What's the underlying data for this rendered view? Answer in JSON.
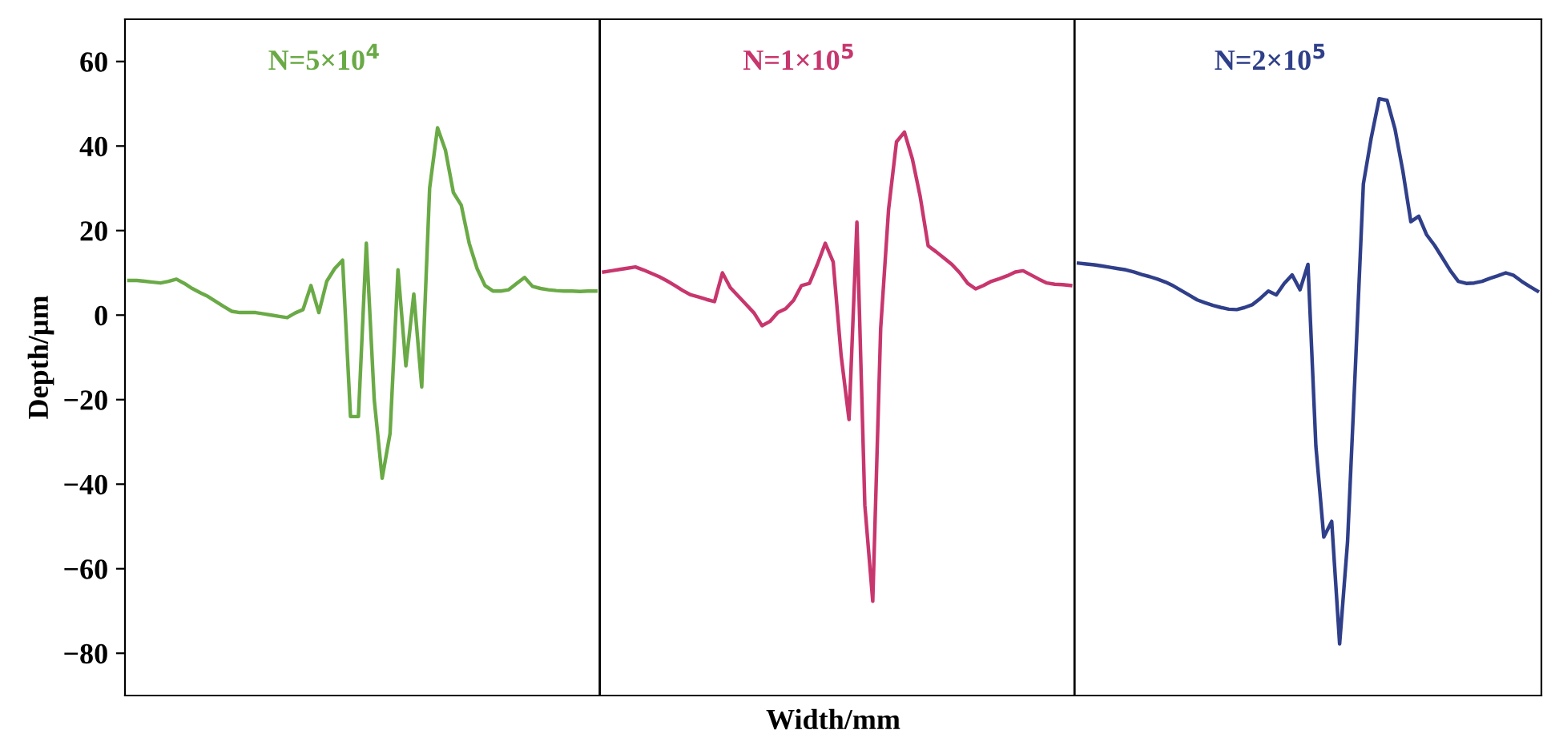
{
  "chart_data": {
    "type": "line",
    "ylabel": "Depth/μm",
    "xlabel": "Width/mm",
    "ylim": [
      -90,
      70
    ],
    "yticks": [
      60,
      40,
      20,
      0,
      {
        "value": -20,
        "label": "−20"
      },
      {
        "value": -40,
        "label": "−40"
      },
      {
        "value": -60,
        "label": "−60"
      },
      {
        "value": -80,
        "label": "−80"
      }
    ],
    "tick_labels": "y",
    "grid": false,
    "legend": false,
    "categories": [
      null,
      null,
      null,
      null,
      null,
      null,
      null,
      null,
      null,
      null,
      null,
      null,
      null,
      null,
      null,
      null,
      null,
      null,
      null,
      null,
      null,
      null,
      null,
      null,
      null,
      null,
      null,
      null,
      null,
      null,
      null,
      null,
      null,
      null,
      null,
      null,
      null,
      null,
      null,
      null,
      null,
      null,
      null,
      null,
      null,
      null,
      null,
      null,
      null,
      null,
      null,
      null,
      null,
      null,
      null,
      null,
      null,
      null,
      null,
      null,
      null,
      null,
      null,
      null,
      null,
      null,
      null,
      null,
      null,
      null,
      null,
      null,
      null,
      null,
      null,
      null,
      null,
      null,
      null,
      null,
      null,
      null,
      null,
      null,
      null,
      null,
      null,
      null,
      null,
      null,
      null,
      null,
      null,
      null,
      null,
      null,
      null,
      null,
      null,
      null,
      null,
      null,
      null,
      null,
      null,
      null,
      null,
      null,
      null,
      null,
      null,
      null,
      null,
      null,
      null,
      null,
      null,
      null,
      null,
      null,
      null,
      null,
      null,
      null,
      null,
      null,
      null,
      null,
      null,
      null,
      null,
      null,
      null,
      null,
      null,
      null,
      null,
      null,
      null,
      null,
      null,
      null,
      null,
      null,
      null,
      null,
      null,
      null,
      null,
      null,
      null,
      null,
      null,
      null,
      null,
      null,
      null,
      null,
      null,
      null,
      null,
      null,
      null,
      null,
      null,
      null,
      null,
      null,
      null,
      null,
      null,
      null,
      null,
      null,
      null,
      null,
      null,
      null,
      null
    ],
    "series": [
      {
        "name": "N=5×10$^{4}$",
        "color": "#6aaa46",
        "values": [
          8.2,
          8.2,
          8.0,
          7.8,
          7.6,
          8.0,
          8.5,
          7.5,
          6.3,
          5.3,
          4.4,
          3.2,
          2,
          0.9,
          0.6,
          0.6,
          0.6,
          0.3,
          0,
          -0.3,
          -0.6,
          0.5,
          1.3,
          7,
          0.6,
          8,
          11,
          13,
          -24,
          -24,
          17,
          -20,
          -38.6,
          -28,
          10.7,
          -12,
          5,
          -17,
          30,
          44.3,
          39,
          29,
          26,
          17,
          11,
          7,
          5.7,
          5.7,
          6,
          7.5,
          8.9,
          6.8,
          6.3,
          6,
          5.8,
          5.7,
          5.7,
          5.6,
          5.7,
          5.7,
          null,
          null,
          null,
          null,
          null,
          null,
          null,
          null,
          null,
          null,
          null,
          null,
          null,
          null,
          null,
          null,
          null,
          null,
          null,
          null,
          null,
          null,
          null,
          null,
          null,
          null,
          null,
          null,
          null,
          null,
          null,
          null,
          null,
          null,
          null,
          null,
          null,
          null,
          null,
          null,
          null,
          null,
          null,
          null,
          null,
          null,
          null,
          null,
          null,
          null,
          null,
          null,
          null,
          null,
          null,
          null,
          null,
          null,
          null,
          null,
          null,
          null,
          null,
          null,
          null,
          null,
          null,
          null,
          null,
          null,
          null,
          null,
          null,
          null,
          null,
          null,
          null,
          null,
          null,
          null,
          null,
          null,
          null,
          null,
          null,
          null,
          null,
          null,
          null,
          null,
          null,
          null,
          null,
          null,
          null,
          null,
          null,
          null,
          null,
          null,
          null,
          null,
          null,
          null,
          null,
          null,
          null,
          null,
          null,
          null,
          null,
          null,
          null,
          null,
          null,
          null,
          null,
          null,
          null
        ]
      },
      {
        "name": "N=1×10$^{5}$",
        "color": "#c8366e",
        "values": [
          null,
          null,
          null,
          null,
          null,
          null,
          null,
          null,
          null,
          null,
          null,
          null,
          null,
          null,
          null,
          null,
          null,
          null,
          null,
          null,
          null,
          null,
          null,
          null,
          null,
          null,
          null,
          null,
          null,
          null,
          null,
          null,
          null,
          null,
          null,
          null,
          null,
          null,
          null,
          null,
          null,
          null,
          null,
          null,
          null,
          null,
          null,
          null,
          null,
          null,
          null,
          null,
          null,
          null,
          null,
          null,
          null,
          null,
          null,
          null,
          10.2,
          10.5,
          10.8,
          11.1,
          11.4,
          10.7,
          9.9,
          9.1,
          8.1,
          7,
          5.8,
          4.8,
          4.3,
          3.7,
          3.2,
          10,
          6.5,
          4.5,
          2.5,
          0.5,
          -2.5,
          -1.5,
          0.6,
          1.5,
          3.5,
          7,
          7.5,
          12,
          17,
          12.6,
          -9.5,
          -24.7,
          22,
          -45,
          -67.7,
          -3.2,
          25,
          41,
          43.3,
          37,
          28,
          16.4,
          15,
          13.5,
          12,
          10,
          7.5,
          6.2,
          7,
          8,
          8.6,
          9.3,
          10.2,
          10.5,
          9.5,
          8.5,
          7.6,
          7.3,
          7.2,
          7,
          null,
          null,
          null,
          null,
          null,
          null,
          null,
          null,
          null,
          null,
          null,
          null,
          null,
          null,
          null,
          null,
          null,
          null,
          null,
          null,
          null,
          null,
          null,
          null,
          null,
          null,
          null,
          null,
          null,
          null,
          null,
          null,
          null,
          null,
          null,
          null,
          null,
          null,
          null,
          null,
          null,
          null,
          null,
          null,
          null,
          null,
          null,
          null,
          null,
          null,
          null,
          null,
          null,
          null,
          null,
          null,
          null,
          null,
          null
        ]
      },
      {
        "name": "N=2×10$^{5}$",
        "color": "#2f3f8a",
        "values": [
          null,
          null,
          null,
          null,
          null,
          null,
          null,
          null,
          null,
          null,
          null,
          null,
          null,
          null,
          null,
          null,
          null,
          null,
          null,
          null,
          null,
          null,
          null,
          null,
          null,
          null,
          null,
          null,
          null,
          null,
          null,
          null,
          null,
          null,
          null,
          null,
          null,
          null,
          null,
          null,
          null,
          null,
          null,
          null,
          null,
          null,
          null,
          null,
          null,
          null,
          null,
          null,
          null,
          null,
          null,
          null,
          null,
          null,
          null,
          null,
          null,
          null,
          null,
          null,
          null,
          null,
          null,
          null,
          null,
          null,
          null,
          null,
          null,
          null,
          null,
          null,
          null,
          null,
          null,
          null,
          null,
          null,
          null,
          null,
          null,
          null,
          null,
          null,
          null,
          null,
          null,
          null,
          null,
          null,
          null,
          null,
          null,
          null,
          null,
          null,
          null,
          null,
          null,
          null,
          null,
          null,
          null,
          null,
          null,
          null,
          null,
          null,
          null,
          null,
          null,
          null,
          null,
          null,
          null,
          null,
          12.3,
          12.1,
          11.9,
          11.6,
          11.3,
          11,
          10.7,
          10.2,
          9.6,
          9.1,
          8.5,
          7.8,
          6.9,
          5.8,
          4.7,
          3.6,
          2.9,
          2.3,
          1.8,
          1.4,
          1.3,
          1.8,
          2.5,
          4,
          5.7,
          4.8,
          7.5,
          9.5,
          6,
          12,
          -31,
          -52.5,
          -48.8,
          -77.8,
          -53.7,
          -12,
          31,
          42,
          51.2,
          50.8,
          44,
          34,
          22.1,
          23.4,
          19,
          16.5,
          13.5,
          10.5,
          8,
          7.5,
          7.6,
          8,
          8.7,
          9.3,
          10,
          9.4,
          8,
          6.8,
          5.7
        ]
      }
    ]
  }
}
